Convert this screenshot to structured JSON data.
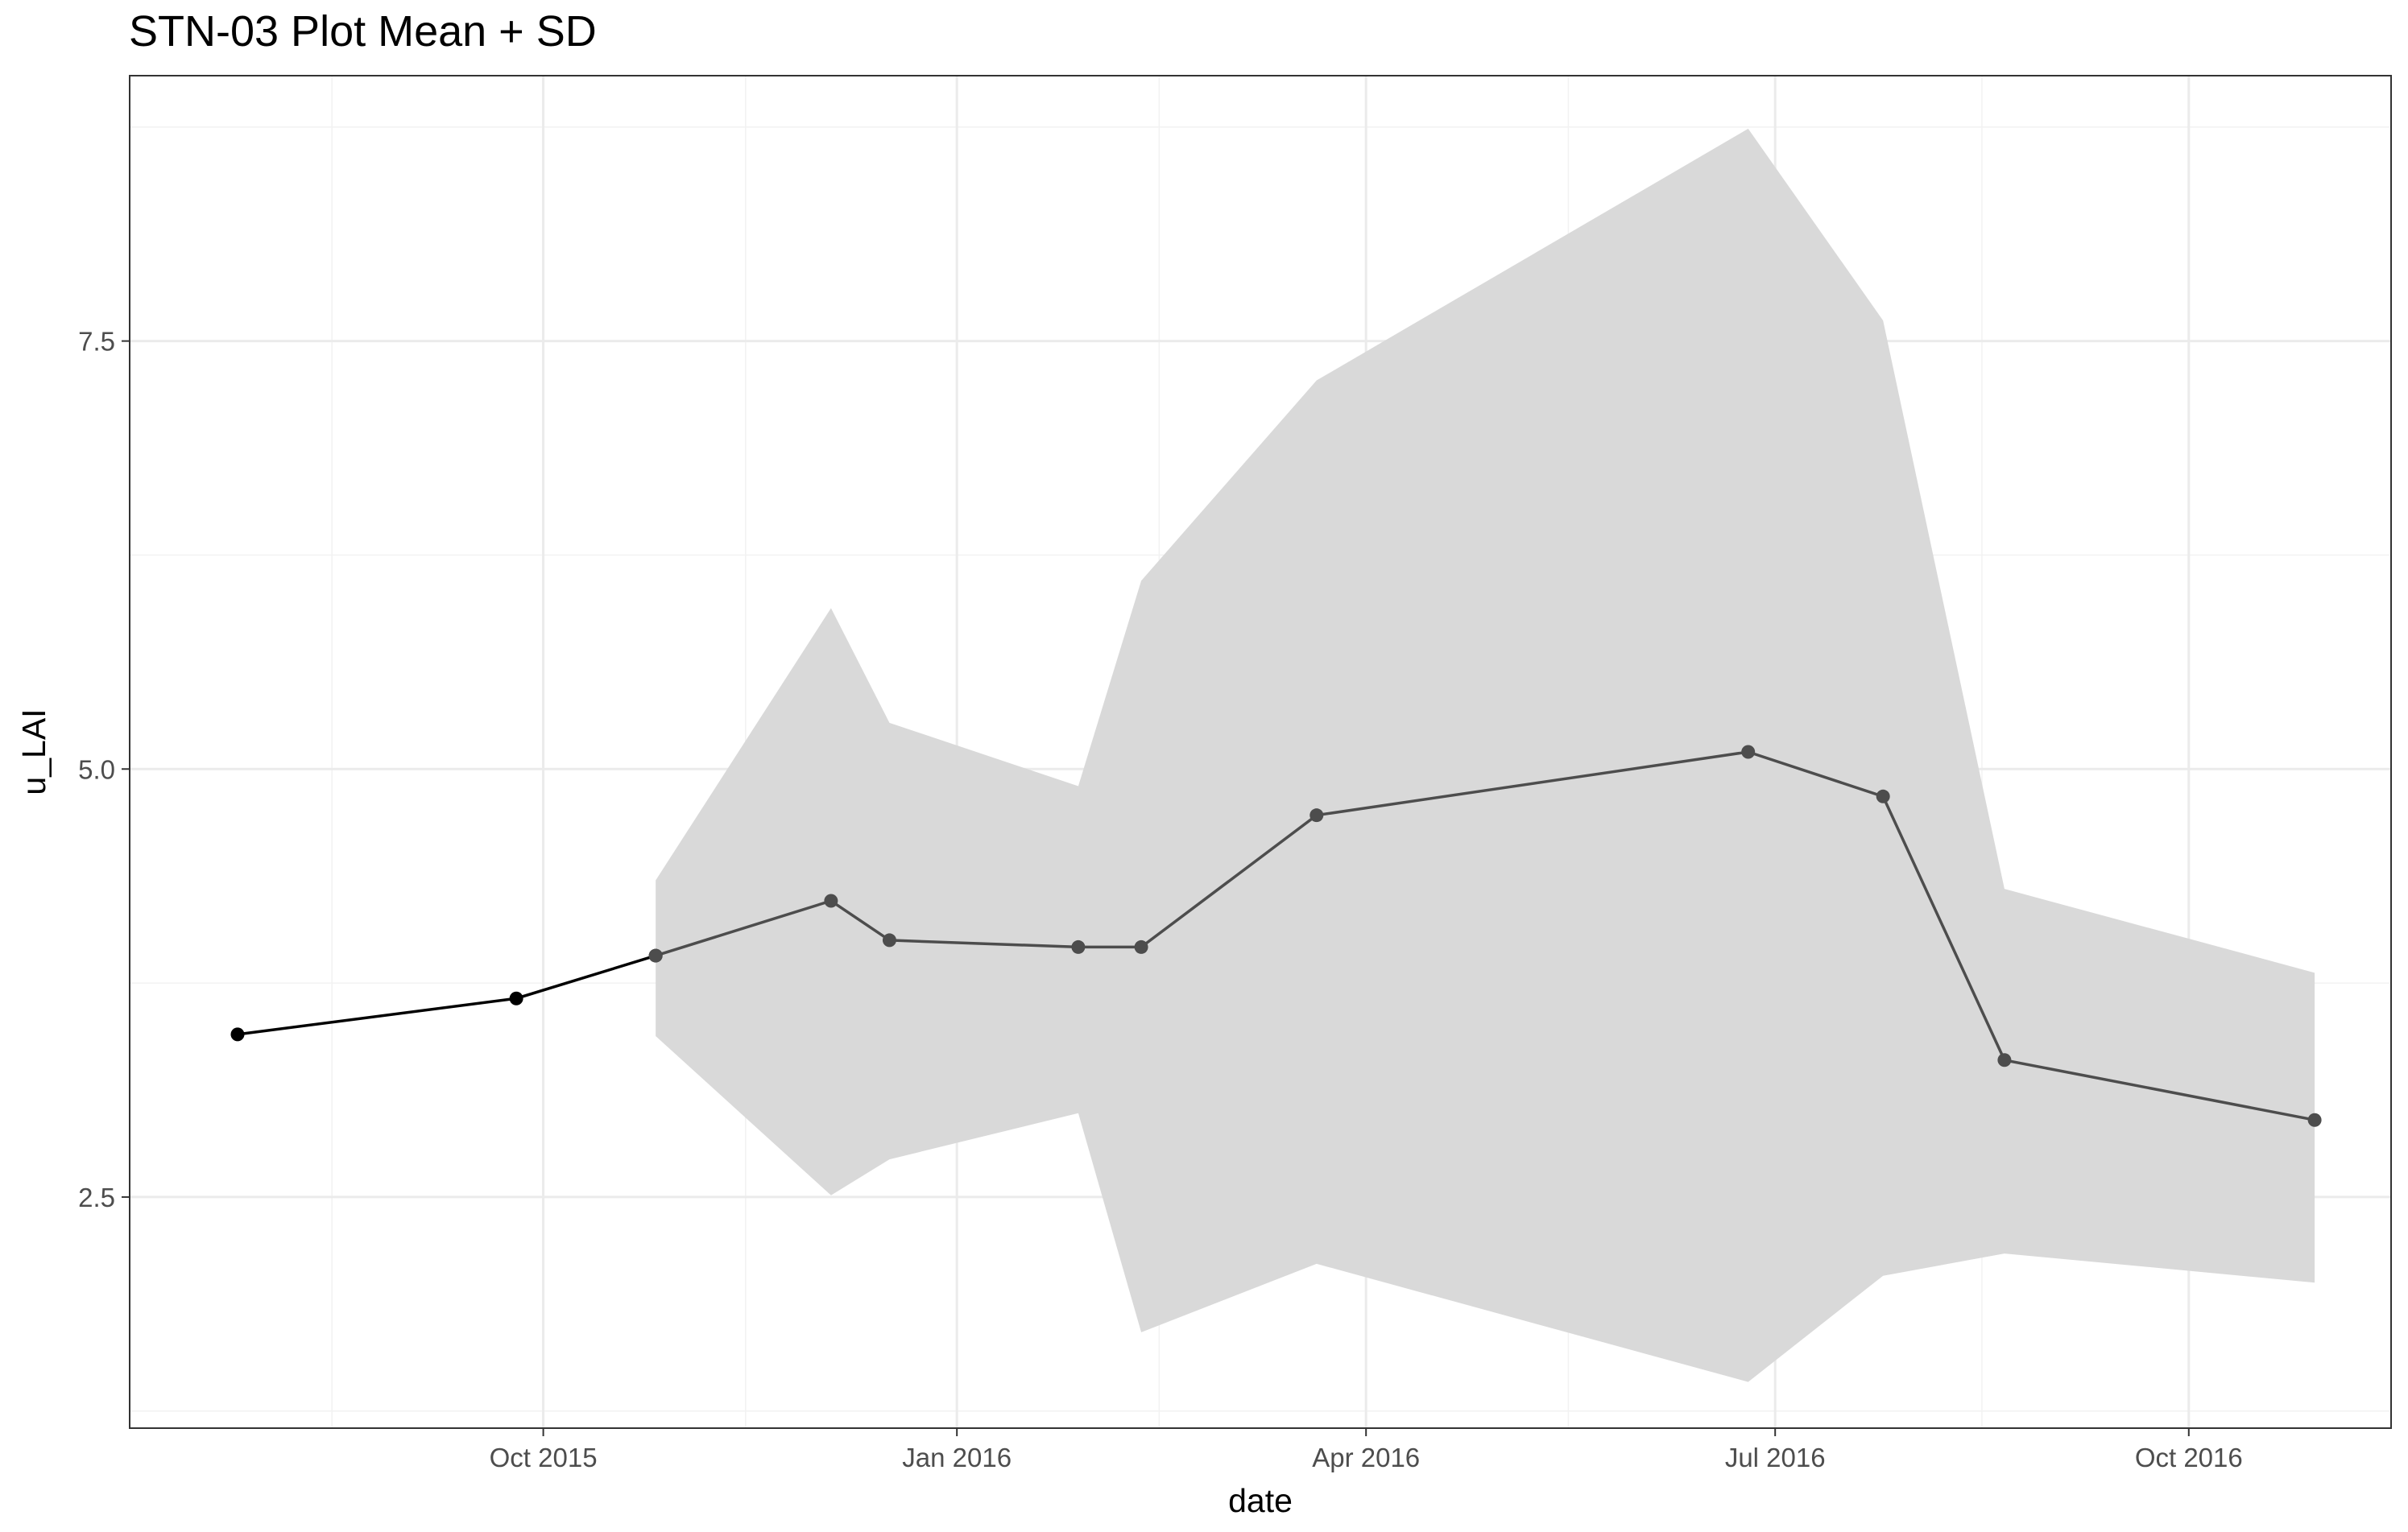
{
  "chart_data": {
    "type": "line",
    "title": "STN-03 Plot Mean + SD",
    "xlabel": "date",
    "ylabel": "u_LAI",
    "xlim": [
      "2015-07-01",
      "2016-11-15"
    ],
    "ylim": [
      1.15,
      9.05
    ],
    "x_ticks": [
      {
        "date": "2015-10-01",
        "label": "Oct 2015"
      },
      {
        "date": "2016-01-01",
        "label": "Jan 2016"
      },
      {
        "date": "2016-04-01",
        "label": "Apr 2016"
      },
      {
        "date": "2016-07-01",
        "label": "Jul 2016"
      },
      {
        "date": "2016-10-01",
        "label": "Oct 2016"
      }
    ],
    "x_minor_ticks": [
      "2015-08-15",
      "2015-11-15",
      "2016-02-15",
      "2016-05-16",
      "2016-08-16"
    ],
    "y_ticks": [
      {
        "value": 2.5,
        "label": "2.5"
      },
      {
        "value": 5.0,
        "label": "5.0"
      },
      {
        "value": 7.5,
        "label": "7.5"
      }
    ],
    "y_minor_ticks": [
      1.25,
      3.75,
      6.25,
      8.75
    ],
    "grid": true,
    "ribbon_color": "#d9d9d9",
    "ribbon": {
      "name": "SD",
      "points": [
        {
          "date": "2015-10-26",
          "lower": 3.44,
          "upper": 4.35
        },
        {
          "date": "2015-12-04",
          "lower": 2.51,
          "upper": 5.94
        },
        {
          "date": "2015-12-17",
          "lower": 2.72,
          "upper": 5.27
        },
        {
          "date": "2016-01-28",
          "lower": 2.99,
          "upper": 4.9
        },
        {
          "date": "2016-02-11",
          "lower": 1.71,
          "upper": 6.1
        },
        {
          "date": "2016-03-21",
          "lower": 2.11,
          "upper": 7.27
        },
        {
          "date": "2016-06-25",
          "lower": 1.42,
          "upper": 8.74
        },
        {
          "date": "2016-07-25",
          "lower": 2.04,
          "upper": 7.62
        },
        {
          "date": "2016-08-21",
          "lower": 2.17,
          "upper": 4.3
        },
        {
          "date": "2016-10-29",
          "lower": 2.0,
          "upper": 3.81
        }
      ]
    },
    "series": [
      {
        "color": "#000000",
        "points": [
          {
            "date": "2015-07-25",
            "value": 3.45
          },
          {
            "date": "2015-09-25",
            "value": 3.66
          },
          {
            "date": "2015-10-26",
            "value": 3.91
          }
        ]
      },
      {
        "color": "#4d4d4d",
        "points": [
          {
            "date": "2015-10-26",
            "value": 3.91
          },
          {
            "date": "2015-12-04",
            "value": 4.23
          },
          {
            "date": "2015-12-17",
            "value": 4.0
          },
          {
            "date": "2016-01-28",
            "value": 3.96
          },
          {
            "date": "2016-02-11",
            "value": 3.96
          },
          {
            "date": "2016-03-21",
            "value": 4.73
          },
          {
            "date": "2016-06-25",
            "value": 5.1
          },
          {
            "date": "2016-07-25",
            "value": 4.84
          },
          {
            "date": "2016-08-21",
            "value": 3.3
          },
          {
            "date": "2016-10-29",
            "value": 2.95
          }
        ]
      }
    ]
  }
}
